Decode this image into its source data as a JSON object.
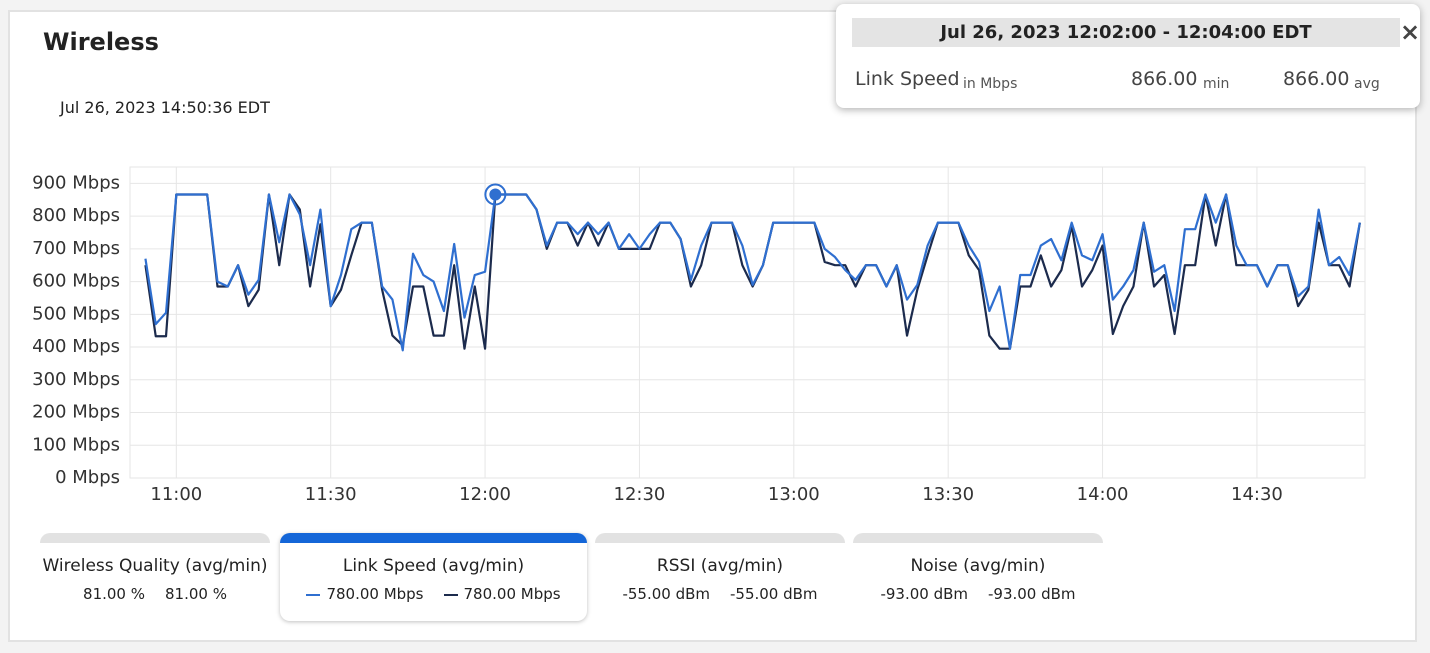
{
  "header": {
    "title": "Wireless",
    "timestamp": "Jul 26, 2023 14:50:36 EDT"
  },
  "chart_data": {
    "type": "line",
    "x": [
      "10:54",
      "10:56",
      "10:58",
      "11:00",
      "11:06",
      "11:08",
      "11:10",
      "11:12",
      "11:14",
      "11:16",
      "11:18",
      "11:20",
      "11:22",
      "11:24",
      "11:26",
      "11:28",
      "11:30",
      "11:32",
      "11:34",
      "11:36",
      "11:38",
      "11:40",
      "11:42",
      "11:44",
      "11:46",
      "11:48",
      "11:50",
      "11:52",
      "11:54",
      "11:56",
      "11:58",
      "12:00",
      "12:02",
      "12:08",
      "12:10",
      "12:12",
      "12:14",
      "12:16",
      "12:18",
      "12:20",
      "12:22",
      "12:24",
      "12:26",
      "12:28",
      "12:30",
      "12:32",
      "12:34",
      "12:36",
      "12:38",
      "12:40",
      "12:42",
      "12:44",
      "12:48",
      "12:50",
      "12:52",
      "12:54",
      "12:56",
      "13:04",
      "13:06",
      "13:08",
      "13:10",
      "13:12",
      "13:14",
      "13:16",
      "13:18",
      "13:20",
      "13:22",
      "13:24",
      "13:26",
      "13:28",
      "13:32",
      "13:34",
      "13:36",
      "13:38",
      "13:40",
      "13:42",
      "13:44",
      "13:46",
      "13:48",
      "13:50",
      "13:52",
      "13:54",
      "13:56",
      "13:58",
      "14:00",
      "14:02",
      "14:04",
      "14:06",
      "14:08",
      "14:10",
      "14:12",
      "14:14",
      "14:16",
      "14:18",
      "14:20",
      "14:22",
      "14:24",
      "14:26",
      "14:28",
      "14:30",
      "14:32",
      "14:34",
      "14:36",
      "14:38",
      "14:40",
      "14:42",
      "14:44",
      "14:46",
      "14:48",
      "14:50"
    ],
    "series": [
      {
        "color": "#2f6fd0",
        "values": [
          670,
          470,
          505,
          866,
          866,
          600,
          585,
          650,
          560,
          605,
          866,
          720,
          866,
          805,
          650,
          820,
          525,
          620,
          760,
          780,
          780,
          585,
          545,
          390,
          685,
          620,
          600,
          510,
          715,
          490,
          620,
          630,
          866,
          866,
          820,
          710,
          780,
          780,
          745,
          780,
          745,
          780,
          700,
          745,
          700,
          745,
          780,
          780,
          730,
          605,
          710,
          780,
          780,
          710,
          590,
          650,
          780,
          780,
          700,
          675,
          635,
          605,
          650,
          650,
          585,
          650,
          545,
          590,
          710,
          780,
          780,
          710,
          660,
          510,
          585,
          395,
          620,
          620,
          710,
          730,
          665,
          780,
          680,
          665,
          745,
          545,
          585,
          635,
          780,
          630,
          650,
          510,
          760,
          760,
          866,
          780,
          866,
          710,
          650,
          650,
          585,
          650,
          650,
          555,
          585,
          820,
          650,
          675,
          620,
          780
        ]
      },
      {
        "color": "#1c2b4d",
        "values": [
          650,
          433,
          433,
          866,
          866,
          585,
          585,
          650,
          525,
          575,
          866,
          650,
          866,
          820,
          585,
          775,
          525,
          575,
          680,
          780,
          780,
          575,
          435,
          405,
          585,
          585,
          435,
          435,
          650,
          395,
          585,
          395,
          866,
          866,
          820,
          700,
          780,
          780,
          710,
          780,
          710,
          780,
          700,
          700,
          700,
          700,
          780,
          780,
          730,
          585,
          650,
          780,
          780,
          650,
          585,
          650,
          780,
          780,
          660,
          650,
          650,
          585,
          650,
          650,
          585,
          650,
          435,
          575,
          680,
          780,
          780,
          680,
          635,
          435,
          395,
          395,
          585,
          585,
          680,
          585,
          635,
          770,
          585,
          635,
          710,
          440,
          525,
          585,
          780,
          585,
          620,
          440,
          650,
          650,
          866,
          710,
          866,
          650,
          650,
          650,
          585,
          650,
          650,
          525,
          575,
          780,
          650,
          650,
          585,
          780
        ]
      }
    ],
    "xlim": [
      "10:51",
      "14:51"
    ],
    "xticks": [
      "11:00",
      "11:30",
      "12:00",
      "12:30",
      "13:00",
      "13:30",
      "14:00",
      "14:30"
    ],
    "ylim": [
      0,
      950
    ],
    "yticks": [
      {
        "value": 0,
        "label": "0 Mbps"
      },
      {
        "value": 100,
        "label": "100 Mbps"
      },
      {
        "value": 200,
        "label": "200 Mbps"
      },
      {
        "value": 300,
        "label": "300 Mbps"
      },
      {
        "value": 400,
        "label": "400 Mbps"
      },
      {
        "value": 500,
        "label": "500 Mbps"
      },
      {
        "value": 600,
        "label": "600 Mbps"
      },
      {
        "value": 700,
        "label": "700 Mbps"
      },
      {
        "value": 800,
        "label": "800 Mbps"
      },
      {
        "value": 900,
        "label": "900 Mbps"
      }
    ],
    "grid": true,
    "highlight": "12:02"
  },
  "tabs": [
    {
      "title": "Wireless Quality (avg/min)",
      "values": [
        "81.00 %",
        "81.00 %"
      ]
    },
    {
      "title": "Link Speed (avg/min)",
      "values": [
        "780.00 Mbps",
        "780.00 Mbps"
      ],
      "active": true
    },
    {
      "title": "RSSI (avg/min)",
      "values": [
        "-55.00 dBm",
        "-55.00 dBm"
      ]
    },
    {
      "title": "Noise (avg/min)",
      "values": [
        "-93.00 dBm",
        "-93.00 dBm"
      ]
    }
  ],
  "tooltip": {
    "title": "Jul 26, 2023 12:02:00 - 12:04:00 EDT",
    "label": "Link Speed",
    "unit": "in Mbps",
    "min": "866.00",
    "min_label": "min",
    "avg": "866.00",
    "avg_label": "avg",
    "close": "×"
  }
}
